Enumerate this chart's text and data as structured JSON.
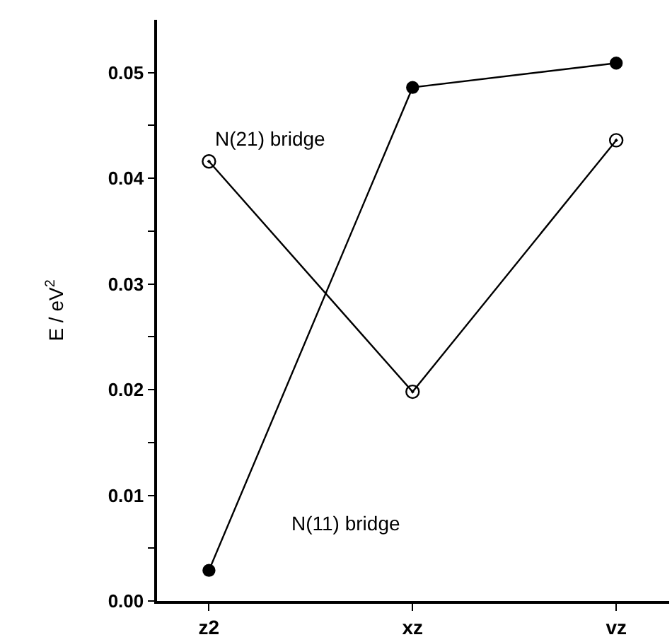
{
  "chart_data": {
    "type": "line",
    "ylabel": "E / eV$^{2}$",
    "categories": [
      "z2",
      "xz",
      "vz"
    ],
    "series": [
      {
        "name": "N(11) bridge",
        "color": "#000000",
        "marker": "circle",
        "values": [
          0.0029,
          0.0486,
          0.0509
        ]
      },
      {
        "name": "N(21) bridge",
        "color": "#000000",
        "marker": "circle-open",
        "values": [
          0.0416,
          0.0198,
          0.0436
        ]
      }
    ],
    "ylim": [
      0,
      0.055
    ],
    "yticks": [
      {
        "value": 0,
        "label": "0.00"
      },
      {
        "value": 0.005,
        "label": null
      },
      {
        "value": 0.01,
        "label": "0.01"
      },
      {
        "value": 0.015,
        "label": null
      },
      {
        "value": 0.02,
        "label": "0.02"
      },
      {
        "value": 0.025,
        "label": null
      },
      {
        "value": 0.03,
        "label": "0.03"
      },
      {
        "value": 0.035,
        "label": null
      },
      {
        "value": 0.04,
        "label": "0.04"
      },
      {
        "value": 0.045,
        "label": null
      },
      {
        "value": 0.05,
        "label": "0.05"
      }
    ],
    "legend": false,
    "line_style": "solid"
  }
}
